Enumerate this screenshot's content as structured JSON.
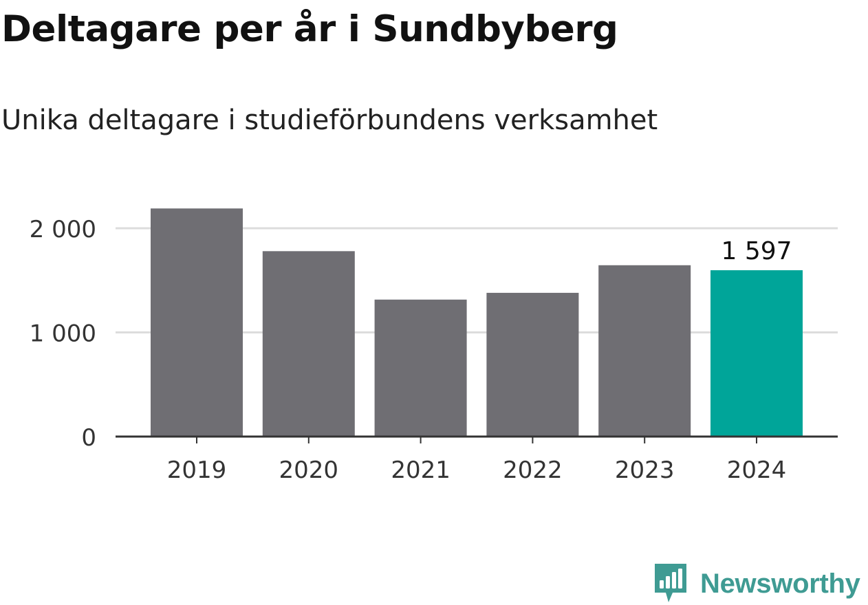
{
  "page": {
    "title": "Deltagare per år i Sundbyberg",
    "subtitle": "Unika deltagare i studieförbundens verksamhet",
    "brand": "Newsworthy"
  },
  "colors": {
    "bar_default": "#6f6e73",
    "bar_highlight": "#00a599",
    "gridline": "#dcdcdc",
    "axis": "#333333",
    "brand": "#3f9b93"
  },
  "icons": {
    "brand_logo": "newsworthy-logo-icon"
  },
  "chart_data": {
    "type": "bar",
    "categories": [
      "2019",
      "2020",
      "2021",
      "2022",
      "2023",
      "2024"
    ],
    "values": [
      2190,
      1780,
      1315,
      1380,
      1645,
      1597
    ],
    "highlight_index": 5,
    "data_labels": [
      {
        "index": 5,
        "text": "1 597"
      }
    ],
    "y_ticks": [
      {
        "value": 0,
        "label": "0"
      },
      {
        "value": 1000,
        "label": "1 000"
      },
      {
        "value": 2000,
        "label": "2 000"
      }
    ],
    "ylim": [
      0,
      2200
    ],
    "grid": true,
    "legend": "none",
    "xlabel": "",
    "ylabel": ""
  }
}
